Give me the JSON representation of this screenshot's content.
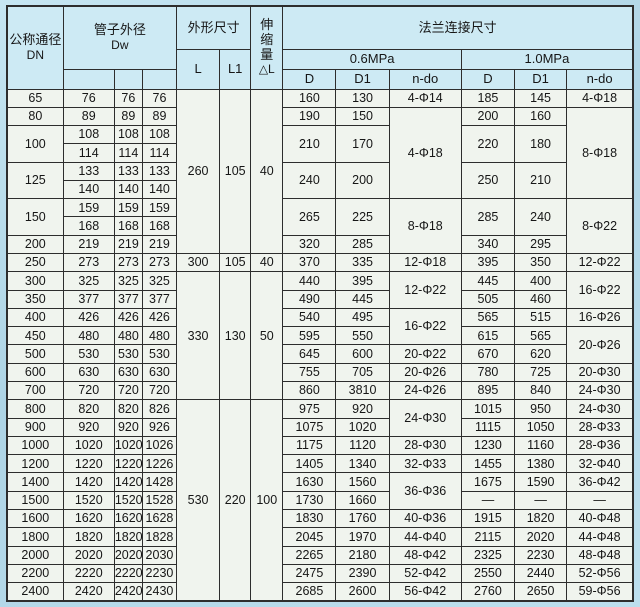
{
  "table": {
    "header": {
      "dn_label": "公称通径",
      "dn_sub": "DN",
      "dw_label": "管子外径",
      "dw_sub": "Dw",
      "dim_label": "外形尺寸",
      "l_label": "L",
      "l1_label": "L1",
      "exp_label": "伸缩量",
      "exp_sub": "△L",
      "flange_label": "法兰连接尺寸",
      "p06_label": "0.6MPa",
      "p10_label": "1.0MPa",
      "d_label": "D",
      "d1_label": "D1",
      "ndo_label": "n-do"
    },
    "rows": [
      [
        "65",
        "76",
        "76",
        "76",
        {
          "t": "260",
          "rs": 9
        },
        {
          "t": "105",
          "rs": 9
        },
        {
          "t": "40",
          "rs": 9
        },
        "160",
        "130",
        "4-Φ14",
        "185",
        "145",
        "4-Φ18"
      ],
      [
        "80",
        "89",
        "89",
        "89",
        "190",
        "150",
        {
          "t": "4-Φ18",
          "rs": 5
        },
        "200",
        "160",
        {
          "t": "8-Φ18",
          "rs": 5
        }
      ],
      [
        {
          "t": "100",
          "rs": 2
        },
        "108",
        "108",
        "108",
        {
          "t": "210",
          "rs": 2
        },
        {
          "t": "170",
          "rs": 2
        },
        {
          "t": "220",
          "rs": 2
        },
        {
          "t": "180",
          "rs": 2
        }
      ],
      [
        "114",
        "114",
        "114"
      ],
      [
        {
          "t": "125",
          "rs": 2
        },
        "133",
        "133",
        "133",
        {
          "t": "240",
          "rs": 2
        },
        {
          "t": "200",
          "rs": 2
        },
        {
          "t": "250",
          "rs": 2
        },
        {
          "t": "210",
          "rs": 2
        }
      ],
      [
        "140",
        "140",
        "140"
      ],
      [
        {
          "t": "150",
          "rs": 2
        },
        "159",
        "159",
        "159",
        {
          "t": "265",
          "rs": 2
        },
        {
          "t": "225",
          "rs": 2
        },
        {
          "t": "8-Φ18",
          "rs": 3
        },
        {
          "t": "285",
          "rs": 2
        },
        {
          "t": "240",
          "rs": 2
        },
        {
          "t": "8-Φ22",
          "rs": 3
        }
      ],
      [
        "168",
        "168",
        "168"
      ],
      [
        "200",
        "219",
        "219",
        "219",
        "320",
        "285",
        "340",
        "295"
      ],
      [
        "250",
        "273",
        "273",
        "273",
        "300",
        "105",
        "40",
        "370",
        "335",
        "12-Φ18",
        "395",
        "350",
        "12-Φ22"
      ],
      [
        "300",
        "325",
        "325",
        "325",
        {
          "t": "330",
          "rs": 7
        },
        {
          "t": "130",
          "rs": 7
        },
        {
          "t": "50",
          "rs": 7
        },
        "440",
        "395",
        {
          "t": "12-Φ22",
          "rs": 2
        },
        "445",
        "400",
        {
          "t": "16-Φ22",
          "rs": 2
        }
      ],
      [
        "350",
        "377",
        "377",
        "377",
        "490",
        "445",
        "505",
        "460"
      ],
      [
        "400",
        "426",
        "426",
        "426",
        "540",
        "495",
        {
          "t": "16-Φ22",
          "rs": 2
        },
        "565",
        "515",
        "16-Φ26"
      ],
      [
        "450",
        "480",
        "480",
        "480",
        "595",
        "550",
        "615",
        "565",
        {
          "t": "20-Φ26",
          "rs": 2
        }
      ],
      [
        "500",
        "530",
        "530",
        "530",
        "645",
        "600",
        "20-Φ22",
        "670",
        "620"
      ],
      [
        "600",
        "630",
        "630",
        "630",
        "755",
        "705",
        "20-Φ26",
        "780",
        "725",
        "20-Φ30"
      ],
      [
        "700",
        "720",
        "720",
        "720",
        "860",
        "3810",
        "24-Φ26",
        "895",
        "840",
        "24-Φ30"
      ],
      [
        "800",
        "820",
        "820",
        "826",
        {
          "t": "530",
          "rs": 11
        },
        {
          "t": "220",
          "rs": 11
        },
        {
          "t": "100",
          "rs": 11
        },
        "975",
        "920",
        {
          "t": "24-Φ30",
          "rs": 2
        },
        "1015",
        "950",
        "24-Φ30"
      ],
      [
        "900",
        "920",
        "920",
        "926",
        "1075",
        "1020",
        "1115",
        "1050",
        "28-Φ33"
      ],
      [
        "1000",
        "1020",
        "1020",
        "1026",
        "1175",
        "1120",
        "28-Φ30",
        "1230",
        "1160",
        "28-Φ36"
      ],
      [
        "1200",
        "1220",
        "1220",
        "1226",
        "1405",
        "1340",
        "32-Φ33",
        "1455",
        "1380",
        "32-Φ40"
      ],
      [
        "1400",
        "1420",
        "1420",
        "1428",
        "1630",
        "1560",
        {
          "t": "36-Φ36",
          "rs": 2
        },
        "1675",
        "1590",
        "36-Φ42"
      ],
      [
        "1500",
        "1520",
        "1520",
        "1528",
        "1730",
        "1660",
        "—",
        "—",
        "—"
      ],
      [
        "1600",
        "1620",
        "1620",
        "1628",
        "1830",
        "1760",
        "40-Φ36",
        "1915",
        "1820",
        "40-Φ48"
      ],
      [
        "1800",
        "1820",
        "1820",
        "1828",
        "2045",
        "1970",
        "44-Φ40",
        "2115",
        "2020",
        "44-Φ48"
      ],
      [
        "2000",
        "2020",
        "2020",
        "2030",
        "2265",
        "2180",
        "48-Φ42",
        "2325",
        "2230",
        "48-Φ48"
      ],
      [
        "2200",
        "2220",
        "2220",
        "2230",
        "2475",
        "2390",
        "52-Φ42",
        "2550",
        "2440",
        "52-Φ56"
      ],
      [
        "2400",
        "2420",
        "2420",
        "2430",
        "2685",
        "2600",
        "56-Φ42",
        "2760",
        "2650",
        "59-Φ56"
      ]
    ]
  }
}
